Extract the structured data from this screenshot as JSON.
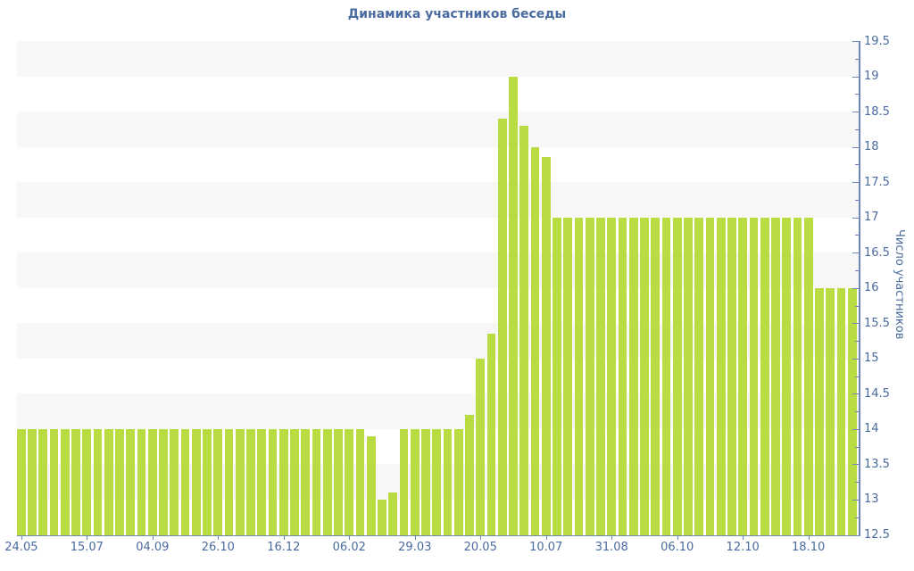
{
  "title": "Динамика участников беседы",
  "chart_data": {
    "type": "bar",
    "title": "Динамика участников беседы",
    "xlabel": "",
    "ylabel": "Число участников",
    "ylim": [
      12.5,
      19.5
    ],
    "grid": "horizontal-stripes",
    "legend": "none",
    "ytick_labels": [
      "12.5",
      "13",
      "13.5",
      "14",
      "14.5",
      "15",
      "15.5",
      "16",
      "16.5",
      "17",
      "17.5",
      "18",
      "18.5",
      "19",
      "19.5"
    ],
    "ytick_step": 0.5,
    "yminor_step": 0.25,
    "xtick_labels": [
      "24.05",
      "15.07",
      "04.09",
      "26.10",
      "16.12",
      "06.02",
      "29.03",
      "20.05",
      "10.07",
      "31.08",
      "06.10",
      "12.10",
      "18.10"
    ],
    "xtick_interval": 6,
    "values": [
      14,
      14,
      14,
      14,
      14,
      14,
      14,
      14,
      14,
      14,
      14,
      14,
      14,
      14,
      14,
      14,
      14,
      14,
      14,
      14,
      14,
      14,
      14,
      14,
      14,
      14,
      14,
      14,
      14,
      14,
      14,
      14,
      13.9,
      13,
      13.1,
      14,
      14,
      14,
      14,
      14,
      14,
      14.2,
      15,
      15.35,
      18.4,
      19,
      18.3,
      18,
      17.85,
      17,
      17,
      17,
      17,
      17,
      17,
      17,
      17,
      17,
      17,
      17,
      17,
      17,
      17,
      17,
      17,
      17,
      17,
      17,
      17,
      17,
      17,
      17,
      17,
      16,
      16,
      16,
      16
    ],
    "colors": {
      "bar": "#b9dc43",
      "axis_line": "#6d87ba",
      "text": "#4a6b9f",
      "stripe": "#f7f7f7",
      "background": "#ffffff"
    }
  }
}
